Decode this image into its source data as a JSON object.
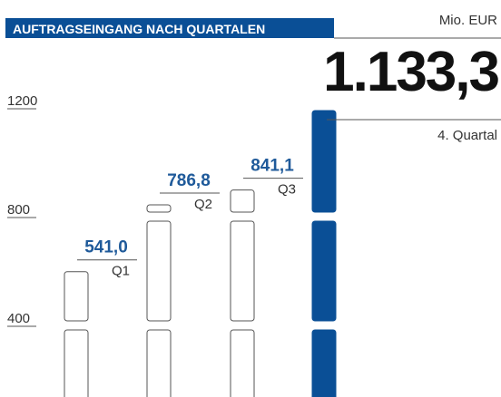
{
  "chart_data": {
    "type": "bar",
    "title": "AUFTRAGSEINGANG NACH QUARTALEN",
    "unit_label": "Mio. EUR",
    "categories": [
      "Q1",
      "Q2",
      "Q3",
      "4. Quartal"
    ],
    "values": [
      541.0,
      786.8,
      841.1,
      1133.3
    ],
    "value_labels": [
      "541,0",
      "786,8",
      "841,1",
      "1.133,3"
    ],
    "colors": [
      "#ffffff",
      "#ffffff",
      "#ffffff",
      "#0a4f96"
    ],
    "label_color": "#1f5a9a",
    "ylim": [
      80,
      1200
    ],
    "yticks": [
      400,
      800,
      1200
    ]
  }
}
